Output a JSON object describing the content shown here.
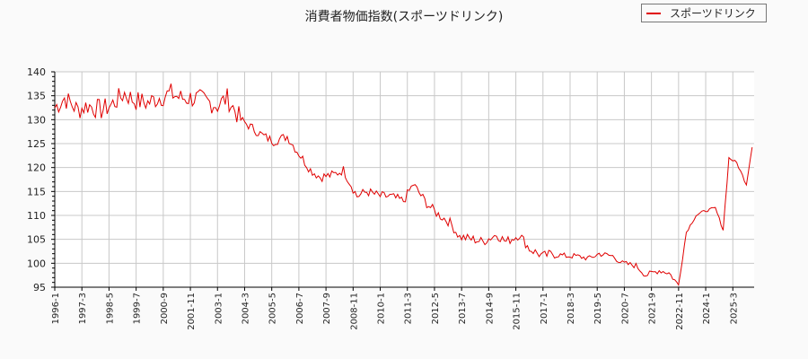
{
  "chart_data": {
    "type": "line",
    "title": "消費者物価指数(スポーツドリンク)",
    "xlabel": "",
    "ylabel": "",
    "ylim": [
      95,
      140
    ],
    "yticks": [
      95,
      100,
      105,
      110,
      115,
      120,
      125,
      130,
      135,
      140
    ],
    "xticks": [
      "1996-1",
      "1997-3",
      "1998-5",
      "1999-7",
      "2000-9",
      "2001-11",
      "2003-1",
      "2004-3",
      "2005-5",
      "2006-7",
      "2007-9",
      "2008-11",
      "2010-1",
      "2011-3",
      "2012-5",
      "2013-7",
      "2014-9",
      "2015-11",
      "2017-1",
      "2018-3",
      "2019-5",
      "2020-7",
      "2021-9",
      "2022-11",
      "2024-1",
      "2025-3"
    ],
    "grid": true,
    "legend_position": "upper right",
    "series": [
      {
        "name": "スポーツドリンク",
        "color": "#e00000",
        "x": [
          "1996-1",
          "1996-6",
          "1997-1",
          "1997-6",
          "1998-1",
          "1998-6",
          "1999-1",
          "1999-6",
          "2000-1",
          "2000-6",
          "2001-1",
          "2001-6",
          "2002-1",
          "2002-6",
          "2003-1",
          "2003-6",
          "2004-1",
          "2004-6",
          "2005-1",
          "2005-6",
          "2006-1",
          "2006-6",
          "2007-1",
          "2007-6",
          "2008-1",
          "2008-6",
          "2009-1",
          "2009-6",
          "2010-1",
          "2010-6",
          "2011-1",
          "2011-6",
          "2012-1",
          "2012-6",
          "2013-1",
          "2013-6",
          "2014-1",
          "2014-6",
          "2015-1",
          "2015-6",
          "2016-1",
          "2016-6",
          "2017-1",
          "2017-6",
          "2018-1",
          "2018-6",
          "2019-1",
          "2019-6",
          "2020-1",
          "2020-6",
          "2021-1",
          "2021-6",
          "2022-1",
          "2022-6",
          "2022-11",
          "2023-3",
          "2023-8",
          "2024-1",
          "2024-6",
          "2024-10",
          "2025-1",
          "2025-5",
          "2025-10",
          "2026-1"
        ],
        "values": [
          132.5,
          134.5,
          132.0,
          133.0,
          132.0,
          133.0,
          135.5,
          134.0,
          133.5,
          134.5,
          135.5,
          134.5,
          134.5,
          134.0,
          133.0,
          134.5,
          130.0,
          128.5,
          126.5,
          125.5,
          126.5,
          123.5,
          119.5,
          118.0,
          118.5,
          119.5,
          114.0,
          115.0,
          114.0,
          114.0,
          113.0,
          116.5,
          112.5,
          110.5,
          108.5,
          105.5,
          105.0,
          104.5,
          106.0,
          104.5,
          106.0,
          103.0,
          101.5,
          102.0,
          101.5,
          101.5,
          101.0,
          102.0,
          101.5,
          100.0,
          99.5,
          97.5,
          98.5,
          98.0,
          95.5,
          106.5,
          110.0,
          111.0,
          111.5,
          107.0,
          122.0,
          121.0,
          116.5,
          124.5
        ]
      }
    ]
  },
  "legend": {
    "label": "スポーツドリンク"
  }
}
